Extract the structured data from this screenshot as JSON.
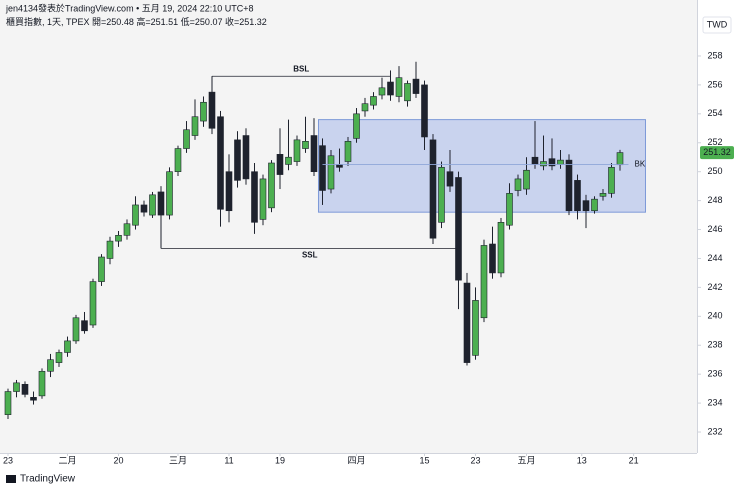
{
  "header": {
    "author_line": "jen4134發表於TradingView.com • 五月 19, 2024 22:10 UTC+8",
    "symbol_info": "櫃買指數, 1天, TPEX",
    "ohlc_labels": [
      "開=",
      "高=",
      "低=",
      "收="
    ]
  },
  "footer": {
    "brand": "TradingView"
  },
  "chart_data": {
    "type": "candlestick",
    "currency": "TWD",
    "up_color": "#4caf50",
    "down_color": "#1e222d",
    "open": [
      233.2,
      234.8,
      235.3,
      234.4,
      234.5,
      236.2,
      236.8,
      237.5,
      238.3,
      239.7,
      239.4,
      242.4,
      244.0,
      245.2,
      245.6,
      246.3,
      247.7,
      247.0,
      248.6,
      247.0,
      250.0,
      251.6,
      252.5,
      253.5,
      255.5,
      253.8,
      250.0,
      252.2,
      252.5,
      250.0,
      246.7,
      247.5,
      251.2,
      250.5,
      250.7,
      251.6,
      252.5,
      251.8,
      248.8,
      250.5,
      250.7,
      252.3,
      254.2,
      254.6,
      255.3,
      256.2,
      255.2,
      254.9,
      256.4,
      256.0,
      252.2,
      246.5,
      250.0,
      249.6,
      242.3,
      237.3,
      239.9,
      245.0,
      243.0,
      246.3,
      248.7,
      248.8,
      251.0,
      250.4,
      250.9,
      250.5,
      250.8,
      249.4,
      248.0,
      247.3,
      248.3,
      248.5,
      250.48
    ],
    "high": [
      235.0,
      235.6,
      235.5,
      234.8,
      236.4,
      237.4,
      237.7,
      238.6,
      240.1,
      240.3,
      242.6,
      244.3,
      245.5,
      245.9,
      246.7,
      248.3,
      248.0,
      248.6,
      249.0,
      250.3,
      251.8,
      253.5,
      255.0,
      255.2,
      256.6,
      254.2,
      251.2,
      252.8,
      253.0,
      250.6,
      249.8,
      250.8,
      253.0,
      253.6,
      252.5,
      253.8,
      253.7,
      252.3,
      251.5,
      251.6,
      252.4,
      254.4,
      255.1,
      255.5,
      256.5,
      257.0,
      257.3,
      256.3,
      257.6,
      256.3,
      252.6,
      250.7,
      251.5,
      250.0,
      243.0,
      242.0,
      245.3,
      246.2,
      246.8,
      249.2,
      249.8,
      251.0,
      253.5,
      252.5,
      252.3,
      251.5,
      251.2,
      249.8,
      248.4,
      248.3,
      248.8,
      250.6,
      251.51
    ],
    "low": [
      232.9,
      234.4,
      234.4,
      233.9,
      234.3,
      235.8,
      236.5,
      237.2,
      238.1,
      238.8,
      239.2,
      242.1,
      243.6,
      244.8,
      245.3,
      246.0,
      246.9,
      246.8,
      244.7,
      246.7,
      249.7,
      251.3,
      252.2,
      253.1,
      252.6,
      246.2,
      246.5,
      248.9,
      249.1,
      245.7,
      246.3,
      247.2,
      248.8,
      250.1,
      250.4,
      251.3,
      249.7,
      247.7,
      248.5,
      250.0,
      250.4,
      252.0,
      253.8,
      254.3,
      255.0,
      254.9,
      254.8,
      254.5,
      255.1,
      251.5,
      245.0,
      246.1,
      248.6,
      240.5,
      236.6,
      237.0,
      239.6,
      242.6,
      242.7,
      246.0,
      248.3,
      248.4,
      250.2,
      250.1,
      250.1,
      250.2,
      247.0,
      246.7,
      246.1,
      247.1,
      248.0,
      248.2,
      250.07
    ],
    "close": [
      234.8,
      235.4,
      234.6,
      234.2,
      236.2,
      237.0,
      237.5,
      238.3,
      239.9,
      239.0,
      242.4,
      244.1,
      245.2,
      245.6,
      246.4,
      247.7,
      247.2,
      248.4,
      247.0,
      250.0,
      251.6,
      252.9,
      253.8,
      254.8,
      253.0,
      247.4,
      247.3,
      249.4,
      249.5,
      246.5,
      249.5,
      250.6,
      249.8,
      251.0,
      252.2,
      252.1,
      250.0,
      248.7,
      251.1,
      250.3,
      252.1,
      254.0,
      254.7,
      255.2,
      255.8,
      255.3,
      256.5,
      256.1,
      255.4,
      252.4,
      245.4,
      250.3,
      249.0,
      242.5,
      236.8,
      241.1,
      244.9,
      243.0,
      246.5,
      248.5,
      249.5,
      250.1,
      250.5,
      250.7,
      250.4,
      250.8,
      247.3,
      247.3,
      247.3,
      248.1,
      248.5,
      250.3,
      251.32
    ],
    "xlim": [
      -0.94,
      81.06
    ],
    "xticks": [
      {
        "value": 0,
        "label": "23"
      },
      {
        "value": 7,
        "label": "二月"
      },
      {
        "value": 13,
        "label": "20"
      },
      {
        "value": 20,
        "label": "三月"
      },
      {
        "value": 26,
        "label": "11"
      },
      {
        "value": 32,
        "label": "19"
      },
      {
        "value": 41,
        "label": "四月"
      },
      {
        "value": 49,
        "label": "15"
      },
      {
        "value": 55,
        "label": "23"
      },
      {
        "value": 61,
        "label": "五月"
      },
      {
        "value": 67.5,
        "label": "13"
      },
      {
        "value": 73.6,
        "label": "21"
      }
    ],
    "ylim": [
      230.55,
      261.87
    ],
    "yticks": [
      232,
      234,
      236,
      238,
      240,
      242,
      244,
      246,
      248,
      250,
      252,
      254,
      256,
      258
    ],
    "zone": {
      "x": [
        37,
        75
      ],
      "y": [
        247.2,
        253.6
      ]
    },
    "levels": [
      {
        "label": "BSL",
        "value": 256.6,
        "x": [
          24,
          45
        ]
      },
      {
        "label": "SSL",
        "value": 244.7,
        "x": [
          18,
          53
        ]
      },
      {
        "label": "BK",
        "value": 250.5,
        "x": [
          37,
          73
        ]
      }
    ]
  }
}
